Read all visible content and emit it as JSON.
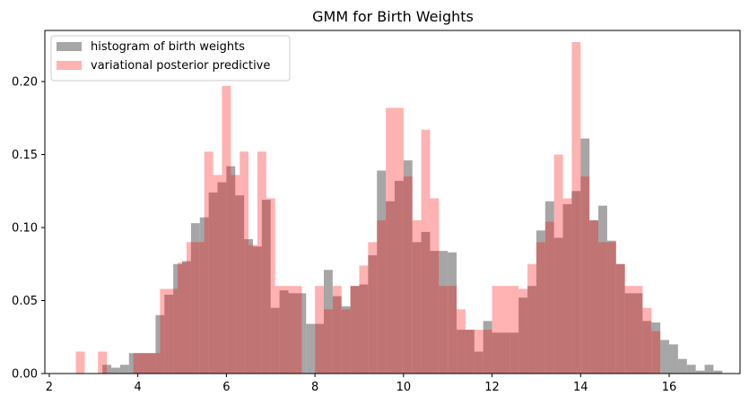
{
  "chart_data": {
    "type": "bar",
    "title": "GMM for Birth Weights",
    "xlabel": "",
    "ylabel": "",
    "xlim": [
      1.9,
      17.6
    ],
    "ylim": [
      0,
      0.235
    ],
    "xticks": [
      2,
      4,
      6,
      8,
      10,
      12,
      14,
      16
    ],
    "yticks": [
      0.0,
      0.05,
      0.1,
      0.15,
      0.2
    ],
    "ytick_labels": [
      "0.00",
      "0.05",
      "0.10",
      "0.15",
      "0.20"
    ],
    "legend": {
      "placement": "top-left"
    },
    "series": [
      {
        "name": "histogram of birth weights",
        "color": "#808080",
        "opacity": 0.7,
        "bins": [
          [
            3.2,
            3.4,
            0.006
          ],
          [
            3.4,
            3.6,
            0.004
          ],
          [
            3.6,
            3.8,
            0.006
          ],
          [
            3.8,
            4.0,
            0.014
          ],
          [
            4.0,
            4.2,
            0.014
          ],
          [
            4.2,
            4.4,
            0.014
          ],
          [
            4.4,
            4.6,
            0.04
          ],
          [
            4.6,
            4.8,
            0.054
          ],
          [
            4.8,
            5.0,
            0.075
          ],
          [
            5.0,
            5.2,
            0.077
          ],
          [
            5.2,
            5.4,
            0.103
          ],
          [
            5.4,
            5.6,
            0.107
          ],
          [
            5.6,
            5.8,
            0.124
          ],
          [
            5.8,
            6.0,
            0.131
          ],
          [
            6.0,
            6.2,
            0.142
          ],
          [
            6.2,
            6.4,
            0.122
          ],
          [
            6.4,
            6.6,
            0.092
          ],
          [
            6.6,
            6.8,
            0.087
          ],
          [
            6.8,
            7.0,
            0.119
          ],
          [
            7.0,
            7.2,
            0.045
          ],
          [
            7.2,
            7.4,
            0.057
          ],
          [
            7.4,
            7.6,
            0.055
          ],
          [
            7.6,
            7.8,
            0.055
          ],
          [
            7.8,
            8.0,
            0.034
          ],
          [
            8.0,
            8.2,
            0.034
          ],
          [
            8.2,
            8.4,
            0.071
          ],
          [
            8.4,
            8.6,
            0.053
          ],
          [
            8.6,
            8.8,
            0.046
          ],
          [
            8.8,
            9.0,
            0.06
          ],
          [
            9.0,
            9.2,
            0.061
          ],
          [
            9.2,
            9.4,
            0.081
          ],
          [
            9.4,
            9.6,
            0.139
          ],
          [
            9.6,
            9.8,
            0.118
          ],
          [
            9.8,
            10.0,
            0.132
          ],
          [
            10.0,
            10.2,
            0.146
          ],
          [
            10.2,
            10.4,
            0.09
          ],
          [
            10.4,
            10.6,
            0.097
          ],
          [
            10.6,
            10.8,
            0.084
          ],
          [
            10.8,
            11.0,
            0.084
          ],
          [
            11.0,
            11.2,
            0.083
          ],
          [
            11.2,
            11.4,
            0.03
          ],
          [
            11.4,
            11.6,
            0.03
          ],
          [
            11.6,
            11.8,
            0.015
          ],
          [
            11.8,
            12.0,
            0.036
          ],
          [
            12.0,
            12.2,
            0.028
          ],
          [
            12.2,
            12.4,
            0.028
          ],
          [
            12.4,
            12.6,
            0.028
          ],
          [
            12.6,
            12.8,
            0.052
          ],
          [
            12.8,
            13.0,
            0.06
          ],
          [
            13.0,
            13.2,
            0.098
          ],
          [
            13.2,
            13.4,
            0.118
          ],
          [
            13.4,
            13.6,
            0.093
          ],
          [
            13.6,
            13.8,
            0.116
          ],
          [
            13.8,
            14.0,
            0.125
          ],
          [
            14.0,
            14.2,
            0.161
          ],
          [
            14.2,
            14.4,
            0.105
          ],
          [
            14.4,
            14.6,
            0.115
          ],
          [
            14.6,
            14.8,
            0.091
          ],
          [
            14.8,
            15.0,
            0.075
          ],
          [
            15.0,
            15.2,
            0.055
          ],
          [
            15.2,
            15.4,
            0.055
          ],
          [
            15.4,
            15.6,
            0.036
          ],
          [
            15.6,
            15.8,
            0.035
          ],
          [
            15.8,
            16.0,
            0.023
          ],
          [
            16.0,
            16.2,
            0.02
          ],
          [
            16.2,
            16.4,
            0.01
          ],
          [
            16.4,
            16.6,
            0.006
          ],
          [
            16.6,
            16.8,
            0.002
          ],
          [
            16.8,
            17.0,
            0.006
          ],
          [
            17.0,
            17.2,
            0.002
          ]
        ]
      },
      {
        "name": "variational posterior predictive",
        "color": "#ff0000",
        "opacity": 0.3,
        "bins": [
          [
            2.6,
            2.8,
            0.015
          ],
          [
            3.1,
            3.3,
            0.015
          ],
          [
            3.9,
            4.1,
            0.014
          ],
          [
            4.1,
            4.3,
            0.014
          ],
          [
            4.3,
            4.5,
            0.014
          ],
          [
            4.5,
            4.7,
            0.058
          ],
          [
            4.7,
            4.9,
            0.058
          ],
          [
            4.9,
            5.1,
            0.076
          ],
          [
            5.1,
            5.3,
            0.09
          ],
          [
            5.3,
            5.5,
            0.09
          ],
          [
            5.5,
            5.7,
            0.152
          ],
          [
            5.7,
            5.9,
            0.136
          ],
          [
            5.9,
            6.1,
            0.197
          ],
          [
            6.1,
            6.3,
            0.136
          ],
          [
            6.3,
            6.5,
            0.152
          ],
          [
            6.5,
            6.7,
            0.088
          ],
          [
            6.7,
            6.9,
            0.152
          ],
          [
            6.9,
            7.1,
            0.12
          ],
          [
            7.1,
            7.3,
            0.06
          ],
          [
            7.3,
            7.5,
            0.06
          ],
          [
            7.5,
            7.7,
            0.06
          ],
          [
            8.0,
            8.2,
            0.06
          ],
          [
            8.2,
            8.4,
            0.044
          ],
          [
            8.4,
            8.6,
            0.06
          ],
          [
            8.6,
            8.8,
            0.044
          ],
          [
            8.8,
            9.0,
            0.06
          ],
          [
            9.0,
            9.2,
            0.074
          ],
          [
            9.2,
            9.4,
            0.09
          ],
          [
            9.4,
            9.6,
            0.105
          ],
          [
            9.6,
            9.8,
            0.182
          ],
          [
            9.8,
            10.0,
            0.182
          ],
          [
            10.0,
            10.2,
            0.135
          ],
          [
            10.2,
            10.4,
            0.105
          ],
          [
            10.4,
            10.6,
            0.167
          ],
          [
            10.6,
            10.8,
            0.12
          ],
          [
            10.8,
            11.0,
            0.06
          ],
          [
            11.0,
            11.2,
            0.06
          ],
          [
            11.2,
            11.4,
            0.044
          ],
          [
            11.4,
            11.6,
            0.03
          ],
          [
            11.6,
            11.8,
            0.03
          ],
          [
            11.8,
            12.0,
            0.03
          ],
          [
            12.0,
            12.2,
            0.06
          ],
          [
            12.2,
            12.4,
            0.06
          ],
          [
            12.4,
            12.6,
            0.06
          ],
          [
            12.6,
            12.8,
            0.058
          ],
          [
            12.8,
            13.0,
            0.075
          ],
          [
            13.0,
            13.2,
            0.09
          ],
          [
            13.2,
            13.4,
            0.104
          ],
          [
            13.4,
            13.6,
            0.15
          ],
          [
            13.6,
            13.8,
            0.12
          ],
          [
            13.8,
            14.0,
            0.227
          ],
          [
            14.0,
            14.2,
            0.135
          ],
          [
            14.2,
            14.4,
            0.105
          ],
          [
            14.4,
            14.6,
            0.09
          ],
          [
            14.6,
            14.8,
            0.09
          ],
          [
            14.8,
            15.0,
            0.075
          ],
          [
            15.0,
            15.2,
            0.06
          ],
          [
            15.2,
            15.4,
            0.06
          ],
          [
            15.4,
            15.6,
            0.045
          ],
          [
            15.6,
            15.8,
            0.029
          ]
        ]
      }
    ]
  }
}
